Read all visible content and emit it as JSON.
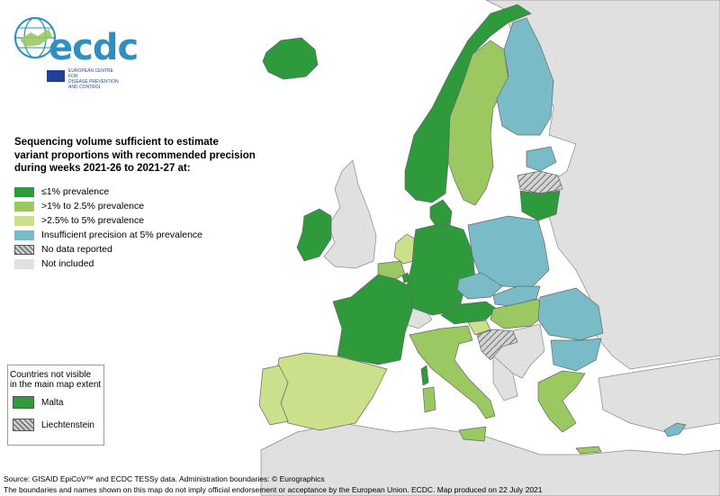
{
  "logo": {
    "word": "ecdc",
    "org_line1": "EUROPEAN CENTRE FOR",
    "org_line2": "DISEASE PREVENTION",
    "org_line3": "AND CONTROL"
  },
  "colors": {
    "le1": "#2e9a3c",
    "gt1to2_5": "#9cc862",
    "gt2_5to5": "#cbe08b",
    "insufficient": "#79bcc8",
    "no_data_hatch": "#8a8a8a",
    "not_included": "#e0e0e0",
    "sea": "#ffffff",
    "border": "#666666"
  },
  "legend": {
    "title_line1": "Sequencing volume sufficient to estimate",
    "title_line2": "variant proportions with recommended precision",
    "title_line3": "during weeks 2021-26 to 2021-27 at:",
    "items": [
      {
        "label": "≤1% prevalence",
        "color_key": "le1"
      },
      {
        "label": ">1% to 2.5% prevalence",
        "color_key": "gt1to2_5"
      },
      {
        "label": ">2.5% to 5% prevalence",
        "color_key": "gt2_5to5"
      },
      {
        "label": "Insufficient precision at 5% prevalence",
        "color_key": "insufficient"
      },
      {
        "label": "No data reported",
        "color_key": "no_data_hatch"
      },
      {
        "label": "Not included",
        "color_key": "not_included"
      }
    ]
  },
  "inset": {
    "caption_line1": "Countries not visible",
    "caption_line2": "in the main map extent",
    "items": [
      {
        "label": "Malta",
        "color_key": "le1"
      },
      {
        "label": "Liechtenstein",
        "color_key": "no_data_hatch"
      }
    ]
  },
  "countries": [
    {
      "name": "Iceland",
      "category": "le1"
    },
    {
      "name": "Norway",
      "category": "le1"
    },
    {
      "name": "Denmark",
      "category": "le1"
    },
    {
      "name": "Germany",
      "category": "le1"
    },
    {
      "name": "France",
      "category": "le1"
    },
    {
      "name": "Austria",
      "category": "le1"
    },
    {
      "name": "Lithuania",
      "category": "le1"
    },
    {
      "name": "Ireland",
      "category": "le1"
    },
    {
      "name": "Sweden",
      "category": "gt1to2_5"
    },
    {
      "name": "Belgium",
      "category": "gt1to2_5"
    },
    {
      "name": "Italy",
      "category": "gt1to2_5"
    },
    {
      "name": "Hungary",
      "category": "gt1to2_5"
    },
    {
      "name": "Greece",
      "category": "gt1to2_5"
    },
    {
      "name": "Netherlands",
      "category": "gt2_5to5"
    },
    {
      "name": "Spain",
      "category": "gt2_5to5"
    },
    {
      "name": "Portugal",
      "category": "gt2_5to5"
    },
    {
      "name": "Slovenia",
      "category": "gt2_5to5"
    },
    {
      "name": "Finland",
      "category": "insufficient"
    },
    {
      "name": "Estonia",
      "category": "insufficient"
    },
    {
      "name": "Poland",
      "category": "insufficient"
    },
    {
      "name": "Czechia",
      "category": "insufficient"
    },
    {
      "name": "Slovakia",
      "category": "insufficient"
    },
    {
      "name": "Romania",
      "category": "insufficient"
    },
    {
      "name": "Bulgaria",
      "category": "insufficient"
    },
    {
      "name": "Cyprus",
      "category": "insufficient"
    },
    {
      "name": "Latvia",
      "category": "no_data_hatch"
    },
    {
      "name": "Croatia",
      "category": "no_data_hatch"
    },
    {
      "name": "Luxembourg",
      "category": "le1"
    },
    {
      "name": "Malta",
      "category": "le1"
    },
    {
      "name": "Liechtenstein",
      "category": "no_data_hatch"
    }
  ],
  "footer": {
    "line1": "Source: GISAID EpiCoV™  and ECDC TESSy data. Administration boundaries: © Eurographics",
    "line2": "The boundaries and names shown on this map do not imply official endorsement or acceptance by the European Union. ECDC. Map produced on 22 July 2021"
  }
}
